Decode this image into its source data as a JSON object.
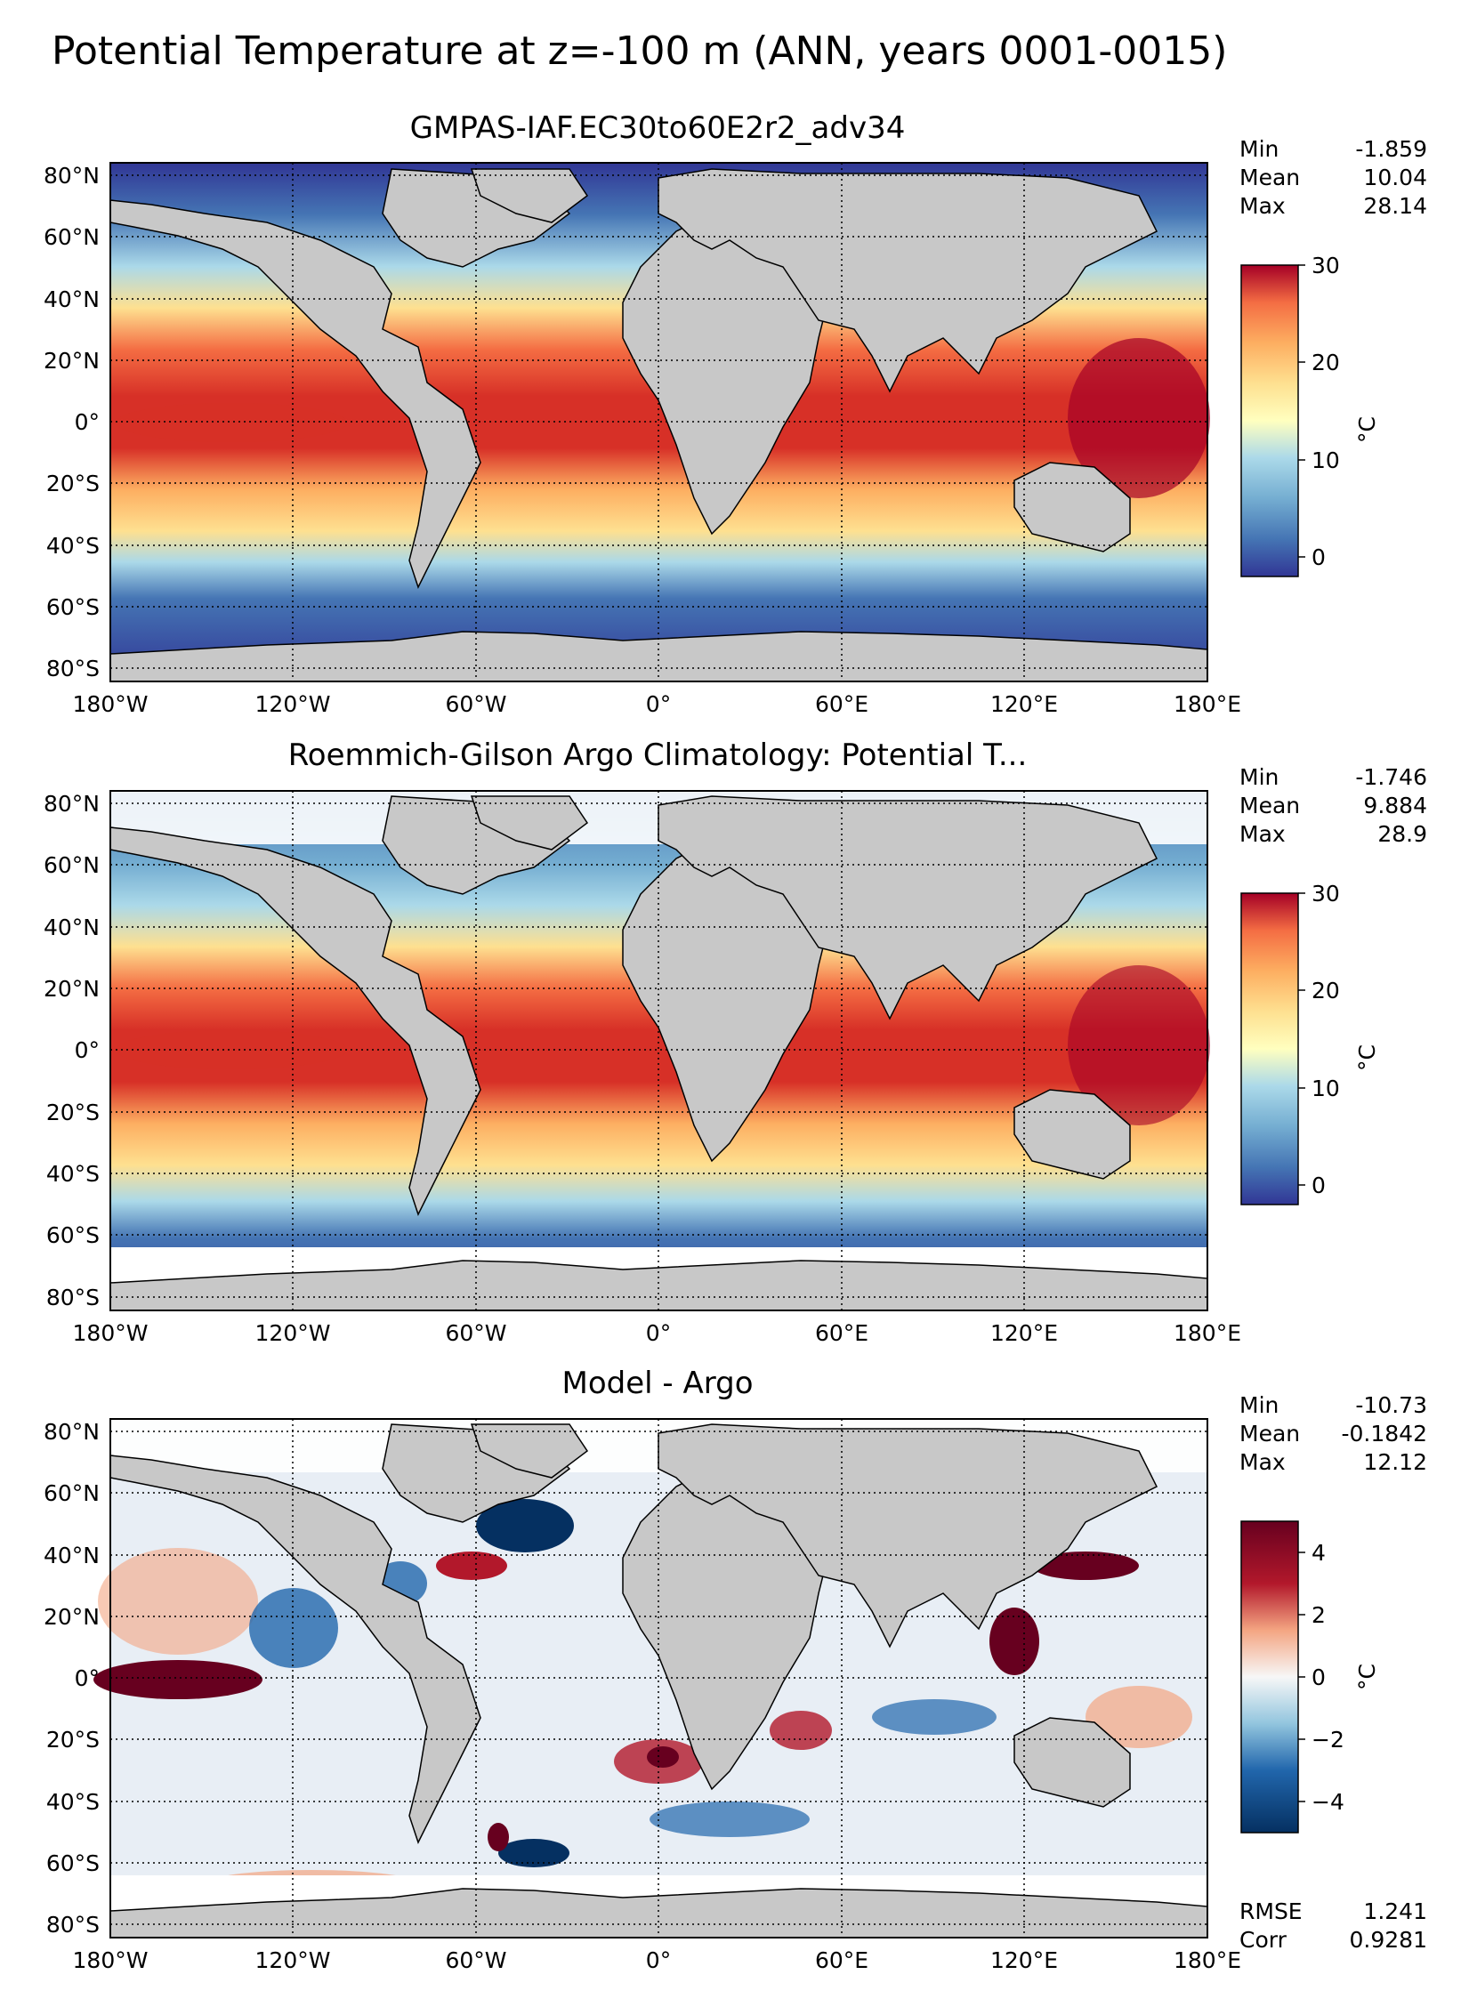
{
  "suptitle": "Potential Temperature at z=-100 m (ANN, years 0001-0015)",
  "lat_ticks": [
    "80°N",
    "60°N",
    "40°N",
    "20°N",
    "0°",
    "20°S",
    "40°S",
    "60°S",
    "80°S"
  ],
  "lon_ticks": [
    "180°W",
    "120°W",
    "60°W",
    "0°",
    "60°E",
    "120°E",
    "180°E"
  ],
  "panels": [
    {
      "title": "GMPAS-IAF.EC30to60E2r2_adv34",
      "stats": [
        {
          "label": "Min",
          "value": "-1.859"
        },
        {
          "label": "Mean",
          "value": "10.04"
        },
        {
          "label": "Max",
          "value": "28.14"
        }
      ],
      "colorbar": {
        "ticks": [
          "0",
          "10",
          "20",
          "30"
        ],
        "unit": "°C",
        "range": [
          -2,
          30
        ],
        "cmap": "RdYlBu_r"
      }
    },
    {
      "title": "Roemmich-Gilson Argo Climatology: Potential T...",
      "stats": [
        {
          "label": "Min",
          "value": "-1.746"
        },
        {
          "label": "Mean",
          "value": "9.884"
        },
        {
          "label": "Max",
          "value": "28.9"
        }
      ],
      "colorbar": {
        "ticks": [
          "0",
          "10",
          "20",
          "30"
        ],
        "unit": "°C",
        "range": [
          -2,
          30
        ],
        "cmap": "RdYlBu_r"
      }
    },
    {
      "title": "Model - Argo",
      "stats": [
        {
          "label": "Min",
          "value": "-10.73"
        },
        {
          "label": "Mean",
          "value": "-0.1842"
        },
        {
          "label": "Max",
          "value": "12.12"
        }
      ],
      "bottom_stats": [
        {
          "label": "RMSE",
          "value": "1.241"
        },
        {
          "label": "Corr",
          "value": "0.9281"
        }
      ],
      "colorbar": {
        "ticks": [
          "4",
          "2",
          "0",
          "−2",
          "−4"
        ],
        "unit": "°C",
        "range": [
          -5,
          5
        ],
        "cmap": "RdBu_r"
      }
    }
  ],
  "colors": {
    "land": "#c8c8c8",
    "deep_blue": "#313695",
    "mid_blue": "#4575b4",
    "light_blue": "#abd9e9",
    "pale_yellow": "#ffffbf",
    "orange": "#fdae61",
    "red_orange": "#f46d43",
    "red": "#d73027",
    "dark_red": "#a50026"
  }
}
